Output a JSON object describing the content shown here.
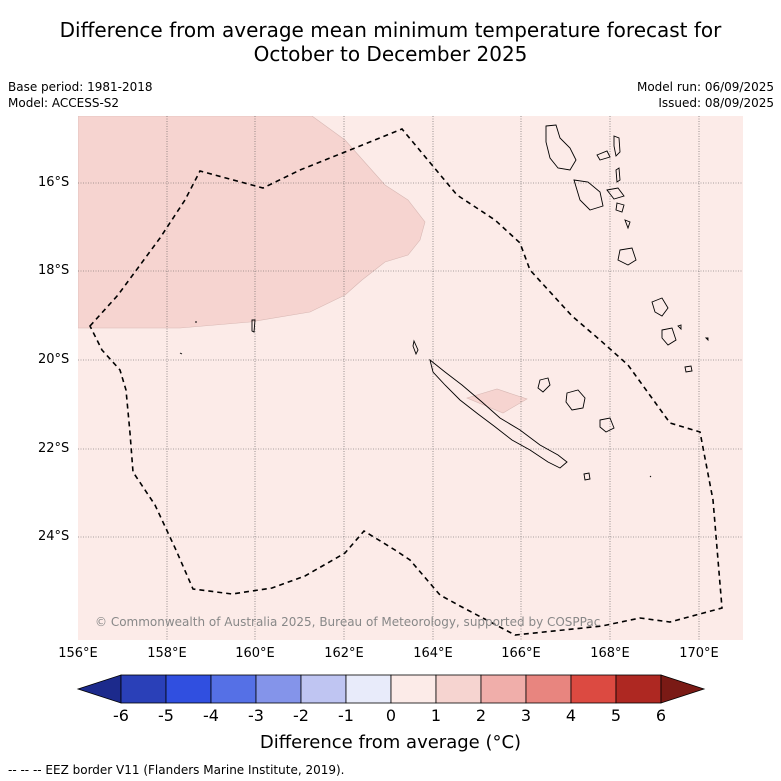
{
  "header": {
    "title_line1": "Difference from average mean minimum temperature forecast for",
    "title_line2": "October to December 2025"
  },
  "meta": {
    "base_period": "Base period: 1981-2018",
    "model": "Model: ACCESS-S2",
    "model_run": "Model run: 06/09/2025",
    "issued": "Issued: 08/09/2025"
  },
  "map": {
    "lat_labels": [
      "16°S",
      "18°S",
      "20°S",
      "22°S",
      "24°S"
    ],
    "lon_labels": [
      "156°E",
      "158°E",
      "160°E",
      "162°E",
      "164°E",
      "166°E",
      "168°E",
      "170°E"
    ],
    "copyright": "© Commonwealth of Australia 2025, Bureau of Meteorology, supported by COSPPac",
    "colors": {
      "background_anomaly_0_1": "#fcebe8",
      "anomaly_1_2": "#f6d4d0",
      "coastline": "#000000",
      "eez_line": "#000000"
    }
  },
  "colorbar": {
    "ticks": [
      "-6",
      "-5",
      "-4",
      "-3",
      "-2",
      "-1",
      "0",
      "1",
      "2",
      "3",
      "4",
      "5",
      "6"
    ],
    "colors": [
      "#1c2a8c",
      "#2a40b8",
      "#304fe0",
      "#5570e6",
      "#8494ea",
      "#bfc5f2",
      "#e8ebfa",
      "#fcebe8",
      "#f6d4d0",
      "#f0aeaa",
      "#e8857f",
      "#dc4a41",
      "#ae2822",
      "#7a1a15"
    ],
    "label": "Difference from average (°C)"
  },
  "footnote": "--  --  -- EEZ border V11 (Flanders Marine Institute, 2019)."
}
